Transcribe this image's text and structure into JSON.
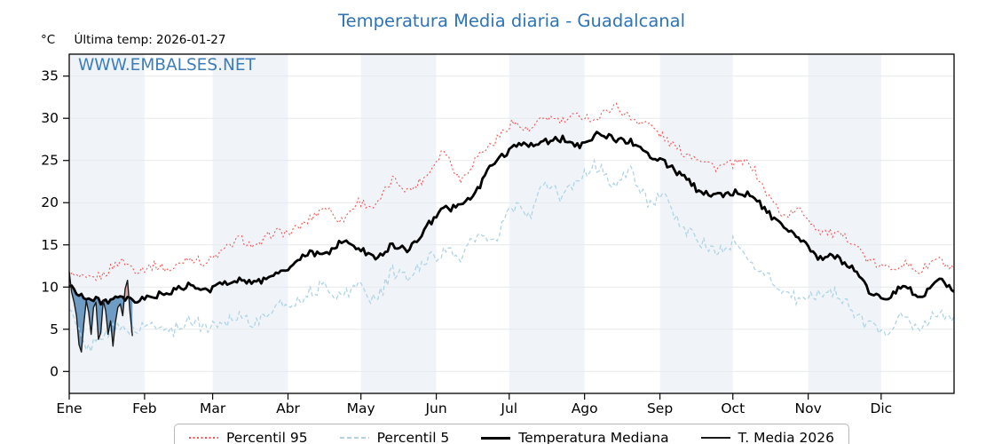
{
  "header": {
    "title": "Temperatura Media diaria - Guadalcanal",
    "degree_label": "°C",
    "last_temp_label": "Última temp: 2026-01-27",
    "watermark": "WWW.EMBALSES.NET"
  },
  "legend": {
    "items": [
      {
        "label": "Percentil 95",
        "color": "#f15554",
        "style": "dotted",
        "thickness": 1.5
      },
      {
        "label": "Percentil 5",
        "color": "#aed4e6",
        "style": "dashed",
        "thickness": 1.5
      },
      {
        "label": "Temperatura Mediana",
        "color": "#000000",
        "style": "solid",
        "thickness": 3
      },
      {
        "label": "T. Media 2026",
        "color": "#1a1a1a",
        "style": "solid",
        "thickness": 1.5
      }
    ]
  },
  "colors": {
    "title_blue": "#2e74b5",
    "p95_red": "#f15554",
    "p5_blue": "#aed4e6",
    "median_black": "#000000",
    "t2026_dark": "#1a1a1a",
    "fill_below_median": "#4e86b8",
    "fill_above_median": "#e89a94",
    "month_band": "#f0f4f9",
    "gridline": "#e6e9ec",
    "axis": "#000000"
  },
  "chart_data": {
    "type": "line",
    "title": "Temperatura Media diaria - Guadalcanal",
    "xlabel": "",
    "ylabel": "°C",
    "ylim": [
      -2.6,
      37.6
    ],
    "yticks": [
      0,
      5,
      10,
      15,
      20,
      25,
      30,
      35
    ],
    "x_unit": "day_of_year",
    "x_range_days": [
      1,
      365
    ],
    "month_labels": [
      "Ene",
      "Feb",
      "Mar",
      "Abr",
      "May",
      "Jun",
      "Jul",
      "Ago",
      "Sep",
      "Oct",
      "Nov",
      "Dic"
    ],
    "month_days": [
      31,
      28,
      31,
      30,
      31,
      30,
      31,
      31,
      30,
      31,
      30,
      31
    ],
    "shaded_months": [
      0,
      2,
      4,
      6,
      8,
      10
    ],
    "grid": "horizontal",
    "legend_position": "bottom-center",
    "last_temp_date": "2026-01-27",
    "series": [
      {
        "name": "Percentil 95",
        "color": "#f15554",
        "line_style": "dotted",
        "width": 1.1,
        "x_start": 1,
        "x_step": 7,
        "values": [
          11.5,
          10.8,
          11.4,
          13.2,
          12.0,
          12.6,
          12.0,
          13.6,
          12.8,
          14.2,
          15.8,
          14.6,
          16.6,
          16.4,
          17.8,
          19.6,
          17.8,
          20.2,
          19.4,
          22.8,
          21.4,
          23.2,
          26.4,
          22.6,
          25.6,
          27.2,
          29.6,
          28.4,
          30.2,
          29.6,
          30.4,
          29.8,
          31.6,
          30.0,
          29.4,
          27.6,
          26.0,
          25.4,
          24.2,
          24.6,
          24.8,
          21.0,
          18.4,
          19.2,
          16.8,
          16.2,
          15.6,
          13.0,
          12.2,
          12.8,
          11.8,
          13.4,
          11.8
        ]
      },
      {
        "name": "Percentil 5",
        "color": "#aed4e6",
        "line_style": "dashed",
        "width": 1.3,
        "x_start": 1,
        "x_step": 7,
        "values": [
          7.4,
          2.4,
          4.6,
          5.2,
          4.8,
          5.8,
          4.6,
          6.2,
          5.2,
          5.8,
          6.8,
          5.6,
          7.6,
          8.0,
          9.2,
          10.2,
          8.8,
          10.4,
          8.2,
          11.8,
          11.0,
          13.4,
          14.2,
          13.6,
          16.2,
          15.0,
          19.8,
          18.4,
          22.4,
          20.4,
          23.2,
          24.4,
          22.2,
          23.6,
          20.2,
          20.4,
          17.2,
          15.6,
          14.0,
          15.2,
          13.0,
          11.4,
          9.4,
          8.2,
          9.2,
          9.6,
          7.2,
          5.4,
          4.8,
          6.6,
          4.6,
          7.2,
          5.8
        ]
      },
      {
        "name": "Temperatura Mediana",
        "color": "#000000",
        "line_style": "solid",
        "width": 2.8,
        "x_start": 1,
        "x_step": 7,
        "values": [
          10.2,
          8.6,
          8.3,
          8.6,
          8.3,
          9.0,
          9.4,
          10.2,
          9.5,
          10.4,
          11.0,
          10.4,
          11.6,
          12.2,
          14.0,
          13.8,
          15.4,
          14.6,
          13.4,
          15.0,
          14.4,
          17.2,
          19.2,
          19.6,
          21.5,
          25.0,
          26.4,
          27.0,
          27.2,
          27.6,
          26.8,
          28.2,
          27.6,
          27.2,
          25.8,
          24.8,
          23.2,
          21.4,
          20.9,
          21.2,
          21.1,
          19.0,
          16.8,
          15.6,
          13.4,
          13.7,
          12.3,
          9.6,
          8.5,
          10.3,
          8.7,
          11.0,
          9.6
        ]
      },
      {
        "name": "T. Media 2026",
        "color": "#1a1a1a",
        "line_style": "solid",
        "width": 1.4,
        "x_start": 1,
        "x_step": 1,
        "values": [
          11.8,
          9.4,
          8.2,
          6.6,
          3.2,
          2.3,
          5.6,
          8.4,
          7.0,
          4.4,
          7.6,
          8.2,
          3.8,
          4.6,
          8.4,
          7.2,
          4.4,
          6.0,
          3.0,
          5.8,
          7.6,
          8.0,
          6.6,
          9.8,
          10.8,
          7.0,
          4.2
        ]
      }
    ],
    "anomaly_fill": {
      "series": "T. Media 2026",
      "baseline": "Temperatura Mediana",
      "above_color": "#e89a94",
      "below_color": "#4e86b8",
      "opacity": 0.8
    }
  }
}
